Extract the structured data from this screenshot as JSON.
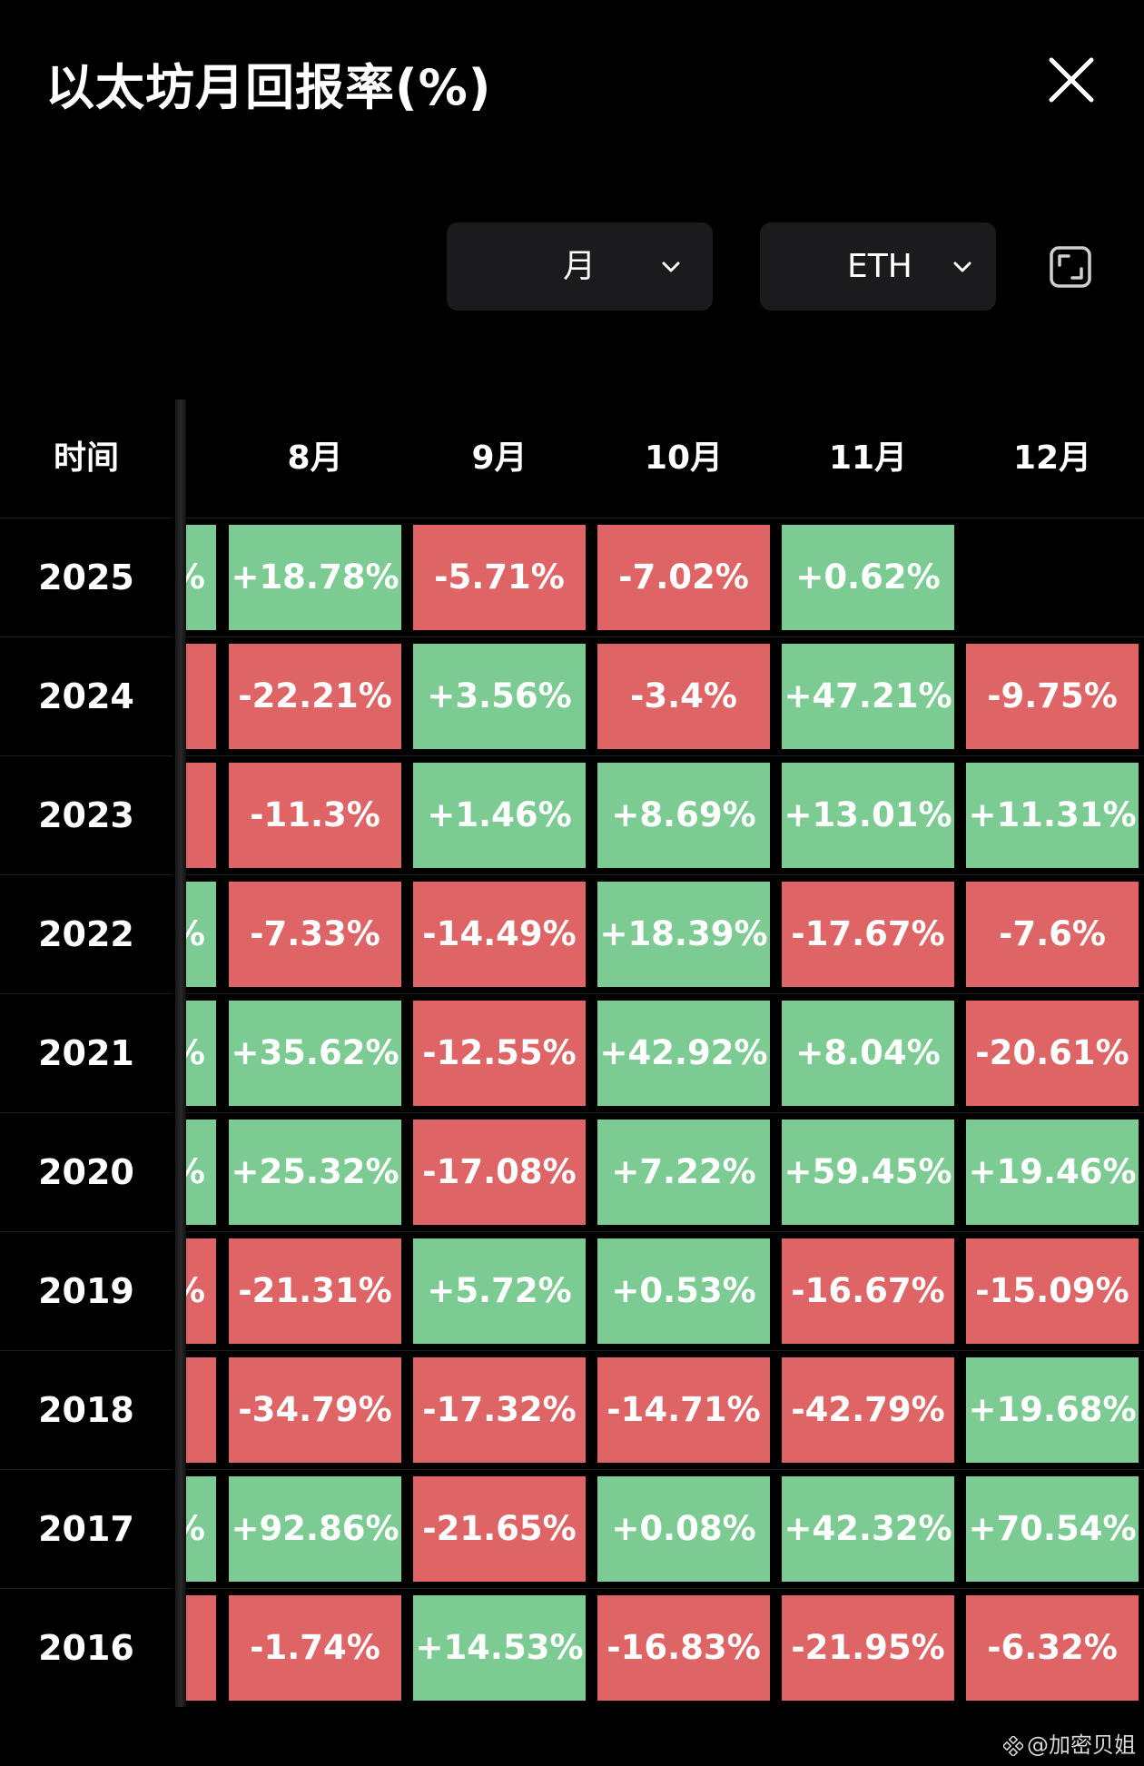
{
  "header": {
    "title": "以太坊月回报率(%)"
  },
  "filters": {
    "period": "月",
    "coin": "ETH"
  },
  "table": {
    "time_header": "时间",
    "columns": [
      "8月",
      "9月",
      "10月",
      "11月",
      "12月"
    ],
    "rows": [
      {
        "year": "2025",
        "edge": "%",
        "edge_sign": "pos",
        "values": [
          "+18.78%",
          "-5.71%",
          "-7.02%",
          "+0.62%",
          ""
        ]
      },
      {
        "year": "2024",
        "edge": "",
        "edge_sign": "neg",
        "values": [
          "-22.21%",
          "+3.56%",
          "-3.4%",
          "+47.21%",
          "-9.75%"
        ]
      },
      {
        "year": "2023",
        "edge": "",
        "edge_sign": "neg",
        "values": [
          "-11.3%",
          "+1.46%",
          "+8.69%",
          "+13.01%",
          "+11.31%"
        ]
      },
      {
        "year": "2022",
        "edge": "%",
        "edge_sign": "pos",
        "values": [
          "-7.33%",
          "-14.49%",
          "+18.39%",
          "-17.67%",
          "-7.6%"
        ]
      },
      {
        "year": "2021",
        "edge": "%",
        "edge_sign": "pos",
        "values": [
          "+35.62%",
          "-12.55%",
          "+42.92%",
          "+8.04%",
          "-20.61%"
        ]
      },
      {
        "year": "2020",
        "edge": "%",
        "edge_sign": "pos",
        "values": [
          "+25.32%",
          "-17.08%",
          "+7.22%",
          "+59.45%",
          "+19.46%"
        ]
      },
      {
        "year": "2019",
        "edge": "%",
        "edge_sign": "neg",
        "values": [
          "-21.31%",
          "+5.72%",
          "+0.53%",
          "-16.67%",
          "-15.09%"
        ]
      },
      {
        "year": "2018",
        "edge": "",
        "edge_sign": "neg",
        "values": [
          "-34.79%",
          "-17.32%",
          "-14.71%",
          "-42.79%",
          "+19.68%"
        ]
      },
      {
        "year": "2017",
        "edge": "%",
        "edge_sign": "pos",
        "values": [
          "+92.86%",
          "-21.65%",
          "+0.08%",
          "+42.32%",
          "+70.54%"
        ]
      },
      {
        "year": "2016",
        "edge": "",
        "edge_sign": "neg",
        "values": [
          "-1.74%",
          "+14.53%",
          "-16.83%",
          "-21.95%",
          "-6.32%"
        ]
      }
    ]
  },
  "colors": {
    "positive": "#7ccb93",
    "negative": "#de6466",
    "background": "#000000"
  },
  "icons": {
    "close": "close-icon",
    "chevron": "chevron-down-icon",
    "fullscreen": "fullscreen-icon"
  },
  "watermark": {
    "text": "@加密贝姐"
  }
}
